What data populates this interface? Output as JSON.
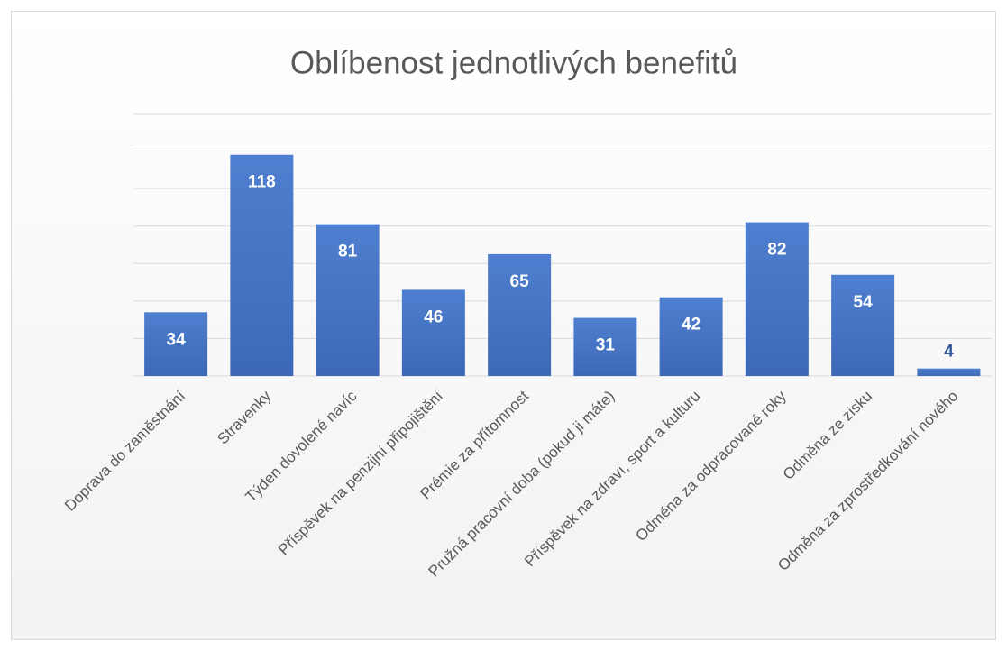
{
  "chart_data": {
    "type": "bar",
    "title": "Oblíbenost jednotlivých benefitů",
    "categories": [
      "Doprava do zaměstnání",
      "Stravenky",
      "Týden dovolené navíc",
      "Příspěvek na penzijní připojištění",
      "Prémie za přítomnost",
      "Pružná pracovní doba (pokud ji máte)",
      "Příspěvek na zdraví, sport a kulturu",
      "Odměna za odpracované roky",
      "Odměna ze zisku",
      "Odměna za zprostředkování nového"
    ],
    "values": [
      34,
      118,
      81,
      46,
      65,
      31,
      42,
      82,
      54,
      4
    ],
    "color": "#4472c4",
    "ylim": [
      0,
      140
    ],
    "yticks": [
      0,
      20,
      40,
      60,
      80,
      100,
      120,
      140
    ],
    "grid": true
  }
}
